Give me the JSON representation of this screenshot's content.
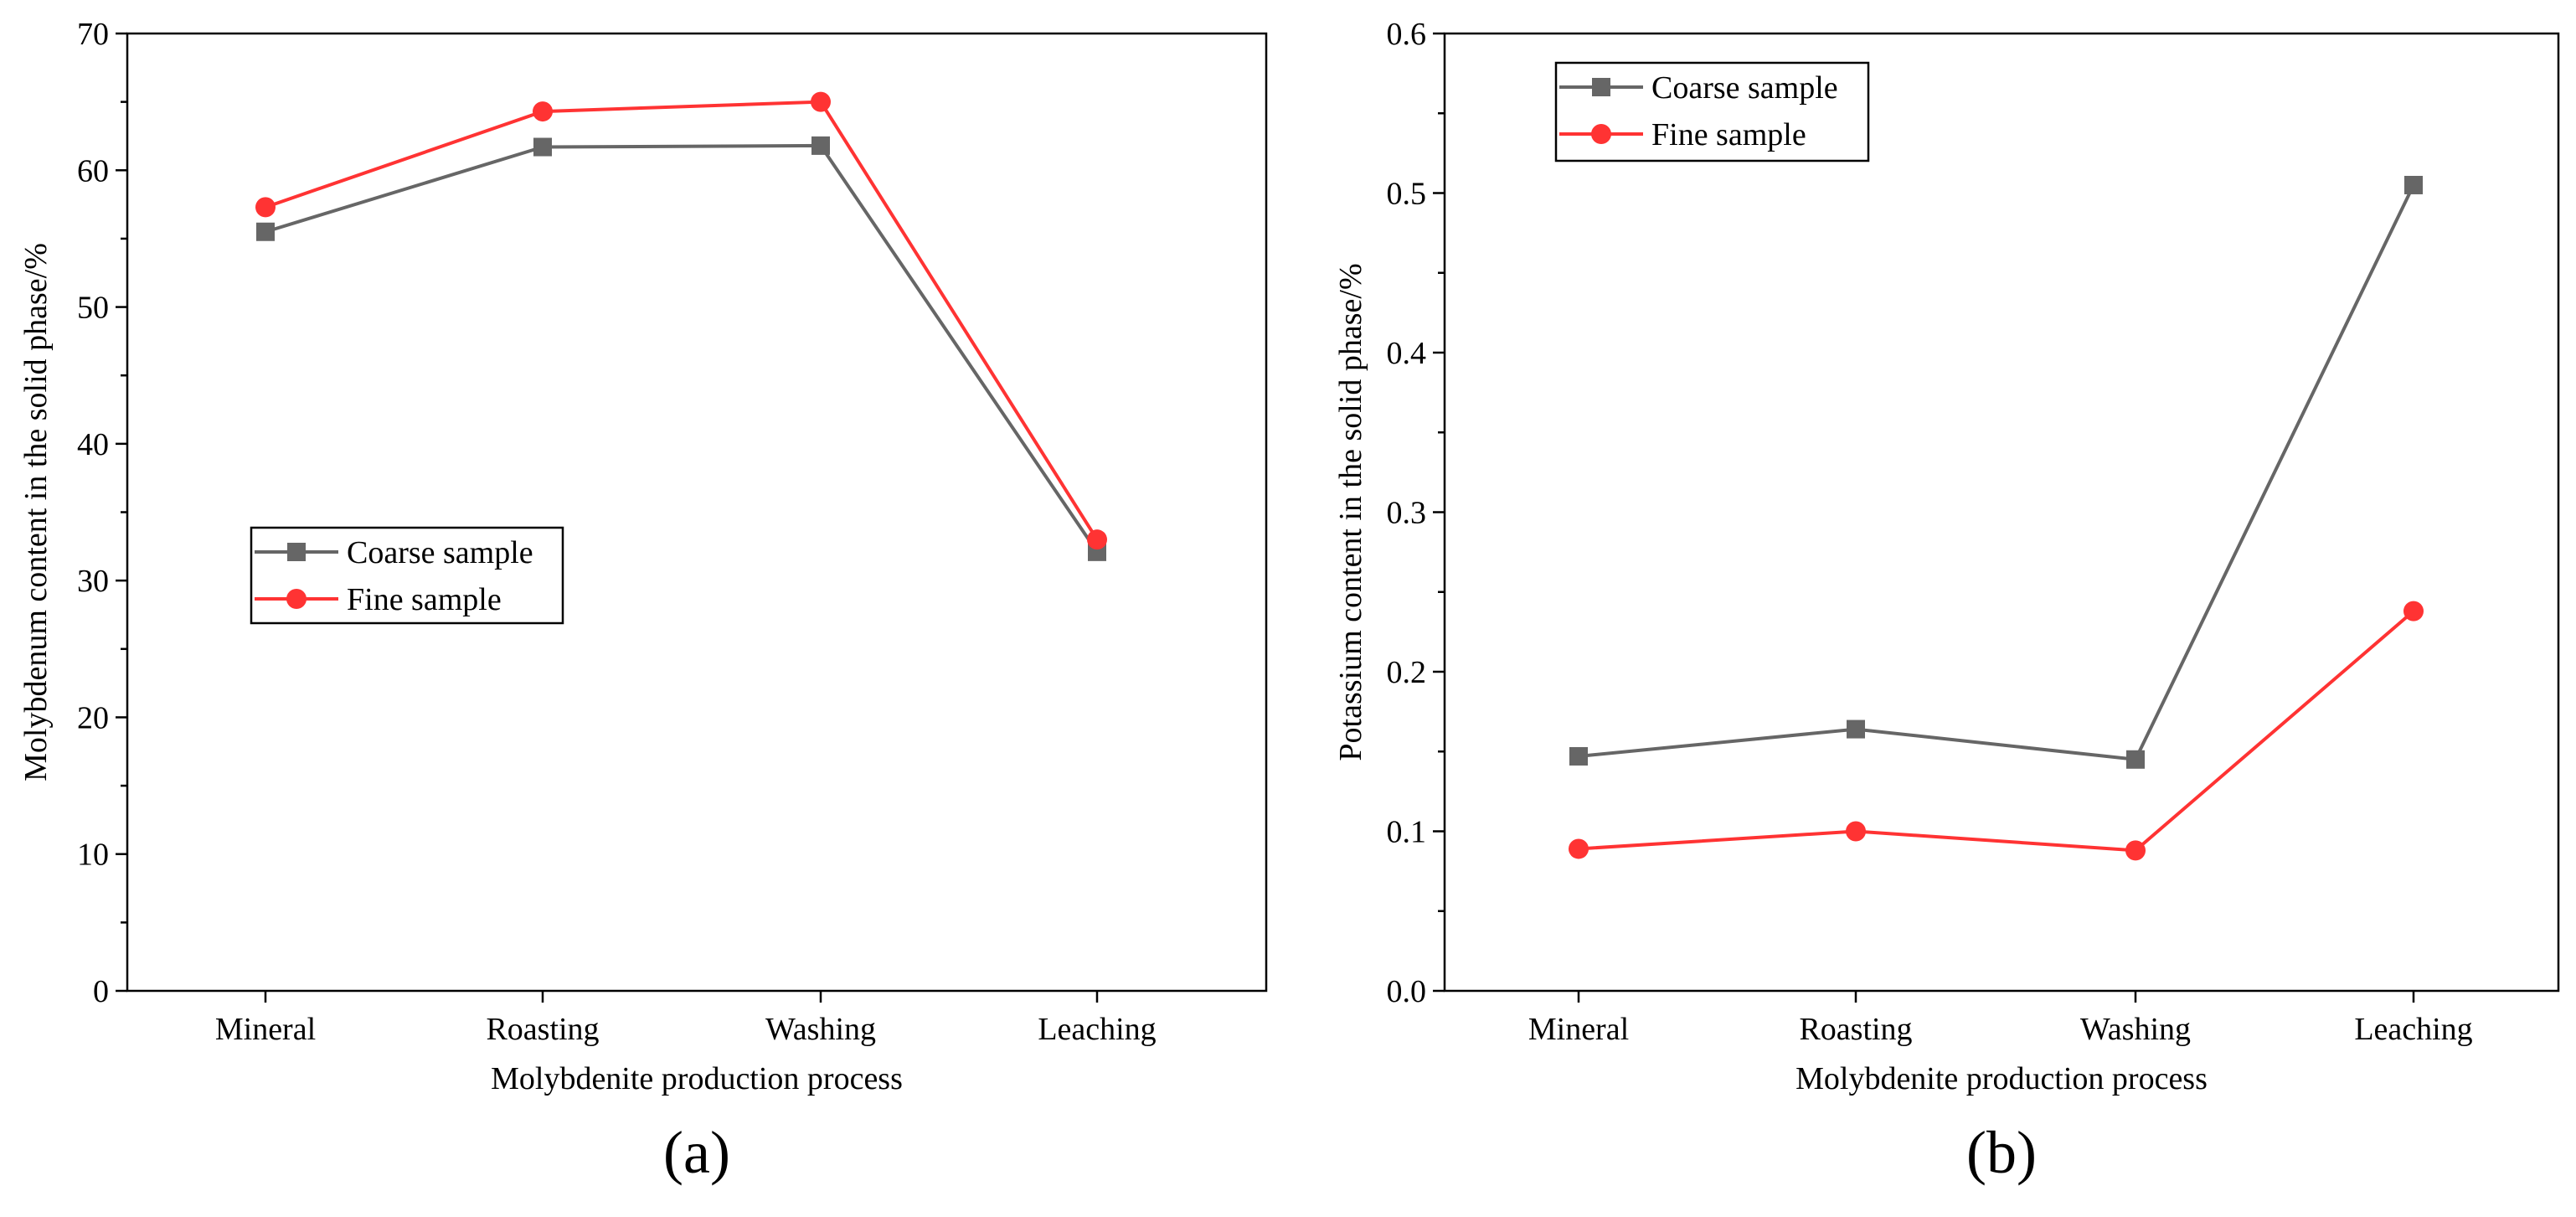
{
  "chart_data": [
    {
      "panel_label": "(a)",
      "type": "line",
      "categories": [
        "Mineral",
        "Roasting",
        "Washing",
        "Leaching"
      ],
      "xlabel": "Molybdenite production process",
      "ylabel": "Molybdenum content in the solid phase/%",
      "ylim": [
        0,
        70
      ],
      "yticks": [
        0,
        10,
        20,
        30,
        40,
        50,
        60,
        70
      ],
      "ytick_labels": [
        "0",
        "10",
        "20",
        "30",
        "40",
        "50",
        "60",
        "70"
      ],
      "legend_position": "center-left",
      "series": [
        {
          "name": "Coarse sample",
          "marker": "square",
          "color": "#666666",
          "values": [
            55.5,
            61.7,
            61.8,
            32.1
          ]
        },
        {
          "name": "Fine sample",
          "marker": "circle",
          "color": "#ff3333",
          "values": [
            57.3,
            64.3,
            65.0,
            33.0
          ]
        }
      ]
    },
    {
      "panel_label": "(b)",
      "type": "line",
      "categories": [
        "Mineral",
        "Roasting",
        "Washing",
        "Leaching"
      ],
      "xlabel": "Molybdenite production process",
      "ylabel": "Potassium content in the solid phase/%",
      "ylim": [
        0,
        0.6
      ],
      "yticks": [
        0,
        0.1,
        0.2,
        0.3,
        0.4,
        0.5,
        0.6
      ],
      "ytick_labels": [
        "0.0",
        "0.1",
        "0.2",
        "0.3",
        "0.4",
        "0.5",
        "0.6"
      ],
      "legend_position": "top-left",
      "series": [
        {
          "name": "Coarse sample",
          "marker": "square",
          "color": "#666666",
          "values": [
            0.147,
            0.164,
            0.145,
            0.505
          ]
        },
        {
          "name": "Fine sample",
          "marker": "circle",
          "color": "#ff3333",
          "values": [
            0.089,
            0.1,
            0.088,
            0.238
          ]
        }
      ]
    }
  ]
}
